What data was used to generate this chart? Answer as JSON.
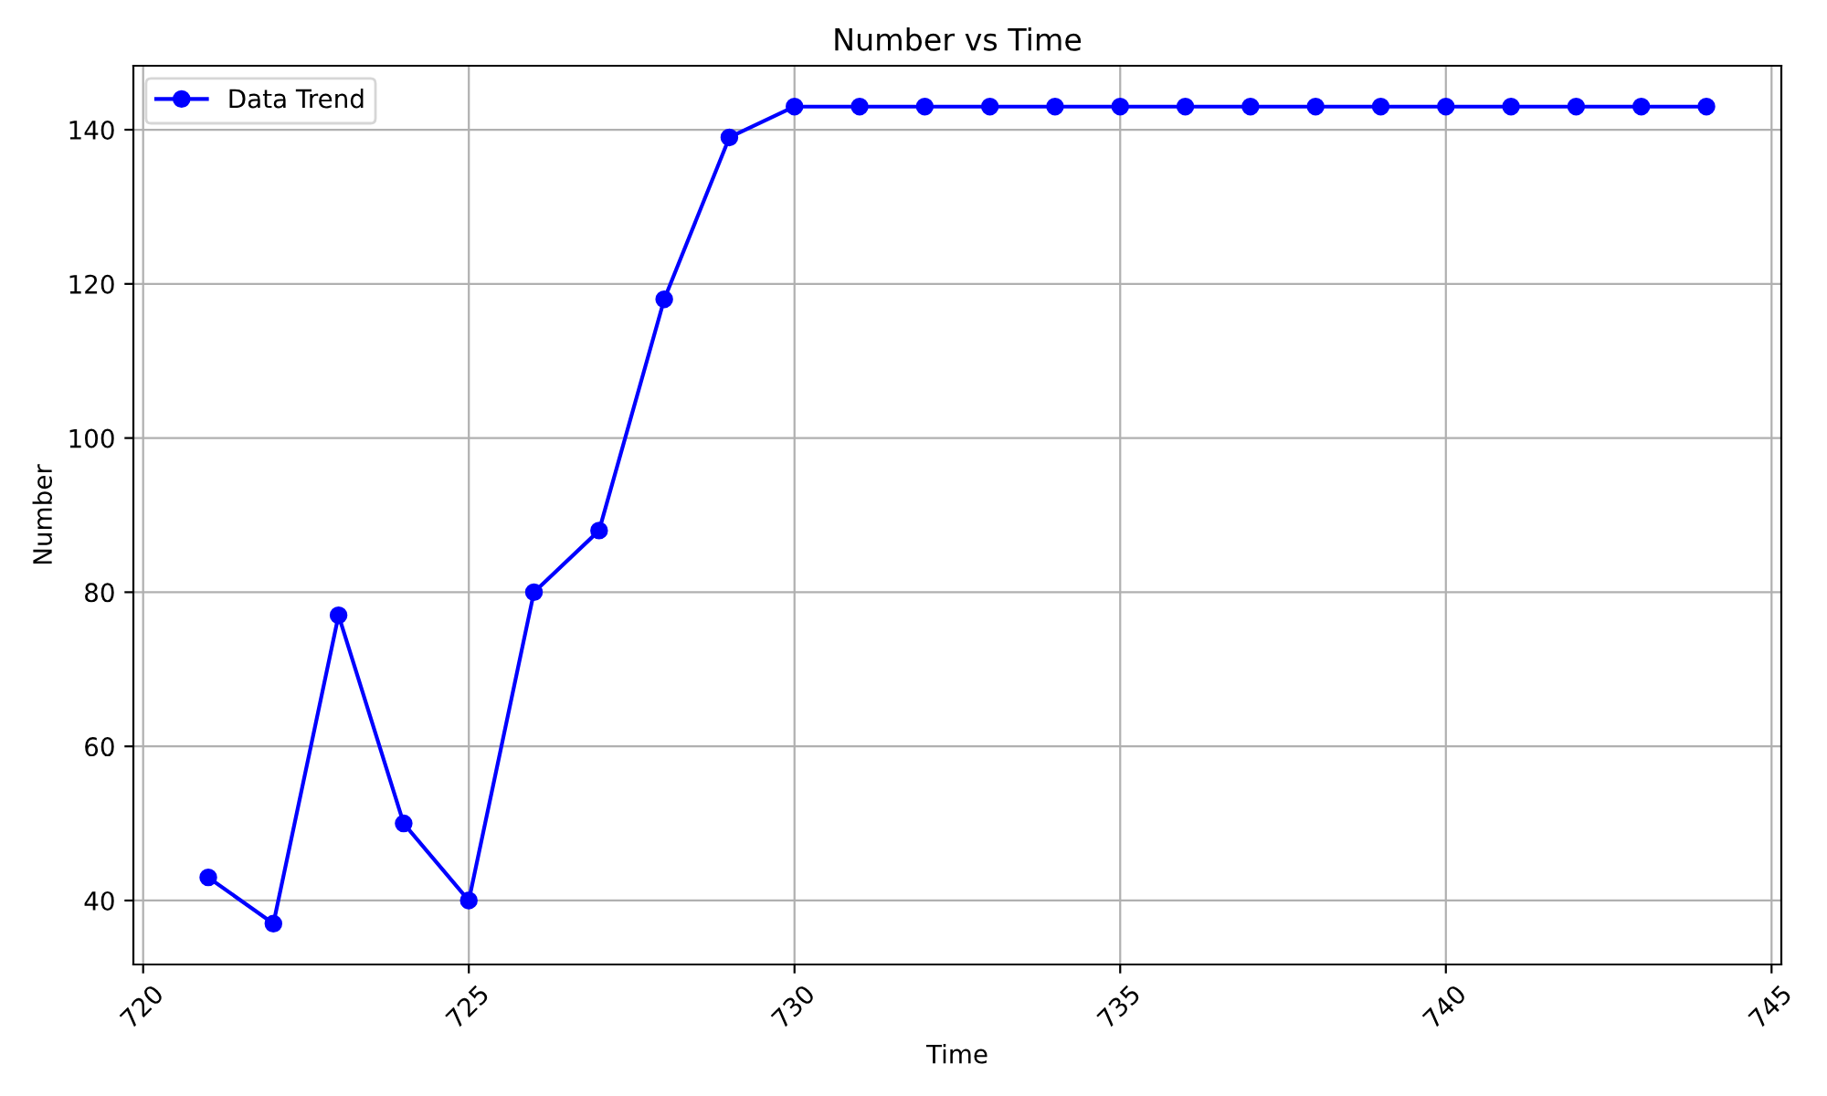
{
  "chart_data": {
    "type": "line",
    "title": "Number vs Time",
    "xlabel": "Time",
    "ylabel": "Number",
    "x": [
      721,
      722,
      723,
      724,
      725,
      726,
      727,
      728,
      729,
      730,
      731,
      732,
      733,
      734,
      735,
      736,
      737,
      738,
      739,
      740,
      741,
      742,
      743,
      744
    ],
    "series": [
      {
        "name": "Data Trend",
        "color": "#0000ff",
        "values": [
          43,
          37,
          77,
          50,
          40,
          80,
          88,
          118,
          139,
          143,
          143,
          143,
          143,
          143,
          143,
          143,
          143,
          143,
          143,
          143,
          143,
          143,
          143,
          143
        ]
      }
    ],
    "xlim": [
      719.85,
      745.15
    ],
    "ylim": [
      31.7,
      148.3
    ],
    "xticks": [
      720,
      725,
      730,
      735,
      740,
      745
    ],
    "yticks": [
      40,
      60,
      80,
      100,
      120,
      140
    ],
    "grid": true,
    "legend": "top left",
    "marker": "circle",
    "line_style": "solid"
  }
}
